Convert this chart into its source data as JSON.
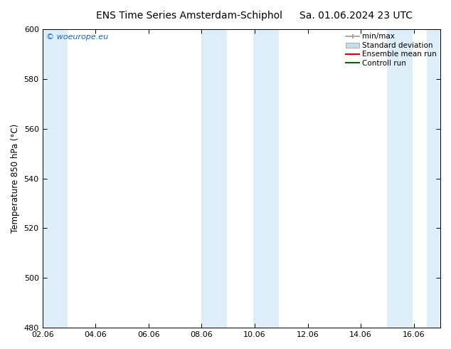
{
  "title_left": "ENS Time Series Amsterdam-Schiphol",
  "title_right": "Sa. 01.06.2024 23 UTC",
  "ylabel": "Temperature 850 hPa (°C)",
  "ylim": [
    480,
    600
  ],
  "yticks": [
    480,
    500,
    520,
    540,
    560,
    580,
    600
  ],
  "xtick_labels": [
    "02.06",
    "04.06",
    "06.06",
    "08.06",
    "10.06",
    "12.06",
    "14.06",
    "16.06"
  ],
  "xtick_days": [
    0,
    2,
    4,
    6,
    8,
    10,
    12,
    14
  ],
  "xlim": [
    0,
    15
  ],
  "bg_color": "#ffffff",
  "shade_color": "#ddeef8",
  "shaded_bands": [
    {
      "x_start": 0.0,
      "x_end": 0.95
    },
    {
      "x_start": 6.0,
      "x_end": 6.95
    },
    {
      "x_start": 7.95,
      "x_end": 8.9
    },
    {
      "x_start": 13.0,
      "x_end": 13.95
    },
    {
      "x_start": 14.5,
      "x_end": 15.0
    }
  ],
  "legend_labels": [
    "min/max",
    "Standard deviation",
    "Ensemble mean run",
    "Controll run"
  ],
  "watermark_text": "© woeurope.eu",
  "watermark_color": "#1166cc",
  "title_fontsize": 10,
  "axis_fontsize": 8.5,
  "tick_fontsize": 8,
  "legend_fontsize": 7.5
}
